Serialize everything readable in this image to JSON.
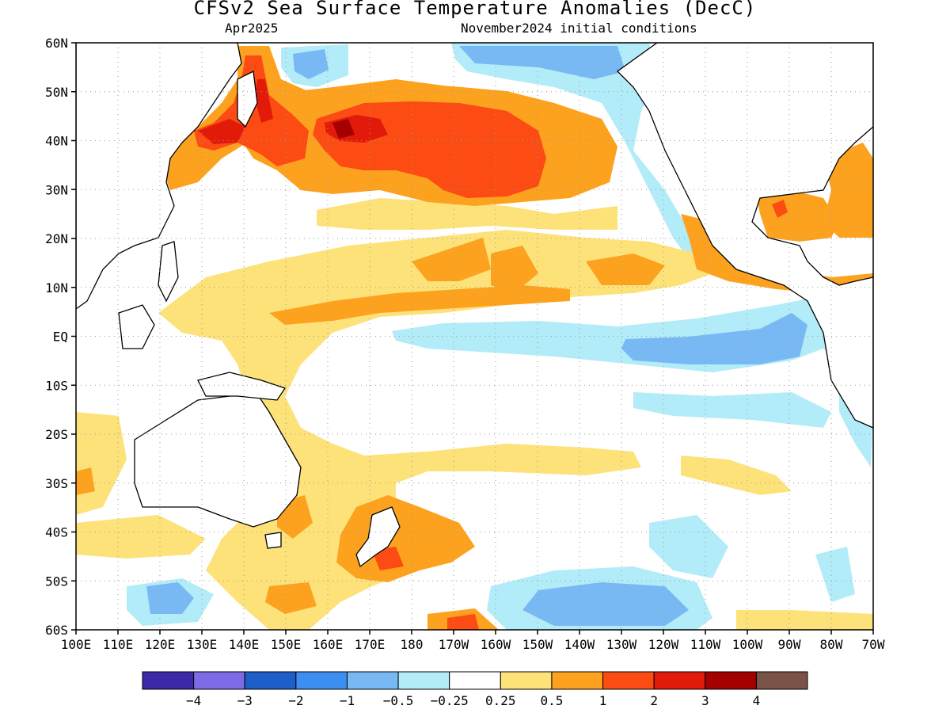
{
  "title": "CFSv2 Sea Surface Temperature Anomalies (DecC)",
  "subtitle_left": "Apr2025",
  "subtitle_right": "November2024 initial conditions",
  "map": {
    "lon_ticks": [
      "100E",
      "110E",
      "120E",
      "130E",
      "140E",
      "150E",
      "160E",
      "170E",
      "180",
      "170W",
      "160W",
      "150W",
      "140W",
      "130W",
      "120W",
      "110W",
      "100W",
      "90W",
      "80W",
      "70W"
    ],
    "lat_ticks": [
      "60N",
      "50N",
      "40N",
      "30N",
      "20N",
      "10N",
      "EQ",
      "10S",
      "20S",
      "30S",
      "40S",
      "50S",
      "60S"
    ]
  },
  "colorbar": {
    "colors": [
      "#3a2aa8",
      "#7d6ae6",
      "#1e5ec8",
      "#3c8ff0",
      "#78b9f4",
      "#b2ecf8",
      "#ffffff",
      "#fde27a",
      "#fca21e",
      "#fc4b13",
      "#e21a0a",
      "#a40000",
      "#7a5247"
    ],
    "labels": [
      "−4",
      "−3",
      "−2",
      "−1",
      "−0.5",
      "−0.25",
      "0.25",
      "0.5",
      "1",
      "2",
      "3",
      "4"
    ]
  },
  "palette": {
    "ocean": "#ffffff",
    "grid": "#aaaaaa",
    "coast": "#000000"
  }
}
